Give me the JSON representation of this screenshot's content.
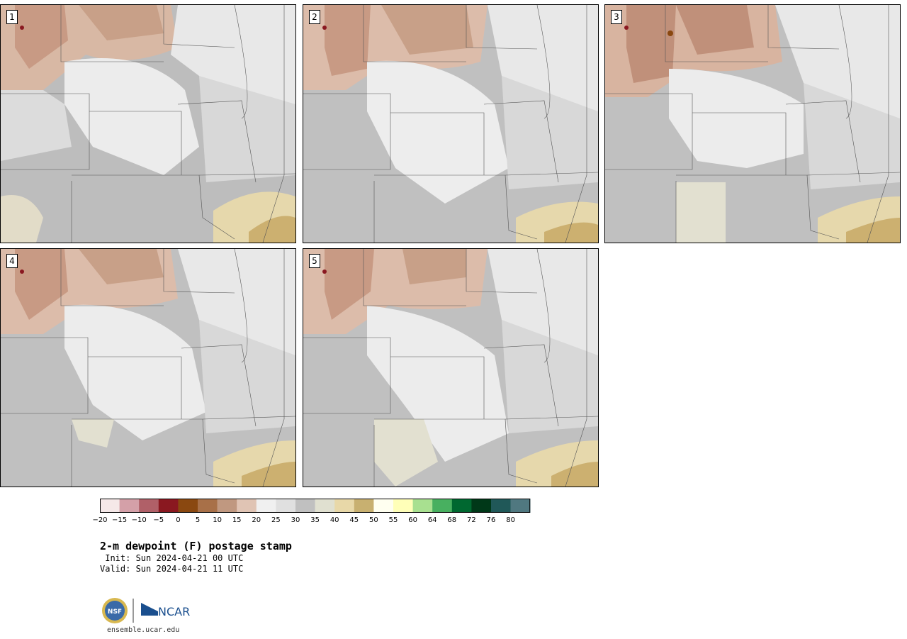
{
  "panels": [
    {
      "label": "1"
    },
    {
      "label": "2"
    },
    {
      "label": "3"
    },
    {
      "label": "4"
    },
    {
      "label": "5"
    }
  ],
  "colorbar": {
    "ticks": [
      "−20",
      "−15",
      "−10",
      "−5",
      "0",
      "5",
      "10",
      "15",
      "20",
      "25",
      "30",
      "35",
      "40",
      "45",
      "50",
      "55",
      "60",
      "64",
      "68",
      "72",
      "76",
      "80"
    ],
    "colors": [
      "#f5e8e8",
      "#d4a0a8",
      "#b06068",
      "#8a1820",
      "#8a4810",
      "#a87048",
      "#c09880",
      "#e0c4b4",
      "#f0f0f0",
      "#e0e0e0",
      "#c0c0c0",
      "#e0e0d0",
      "#e8d8a8",
      "#c8b070",
      "#fffff0",
      "#ffffb8",
      "#a8e090",
      "#48b060",
      "#006830",
      "#003818",
      "#205858",
      "#507880"
    ]
  },
  "title": "2-m dewpoint (F) postage stamp",
  "init": " Init: Sun 2024-04-21 00 UTC",
  "valid": "Valid: Sun 2024-04-21 11 UTC",
  "logo": {
    "nsf": "NSF",
    "ncar": "NCAR"
  },
  "site": "ensemble.ucar.edu"
}
